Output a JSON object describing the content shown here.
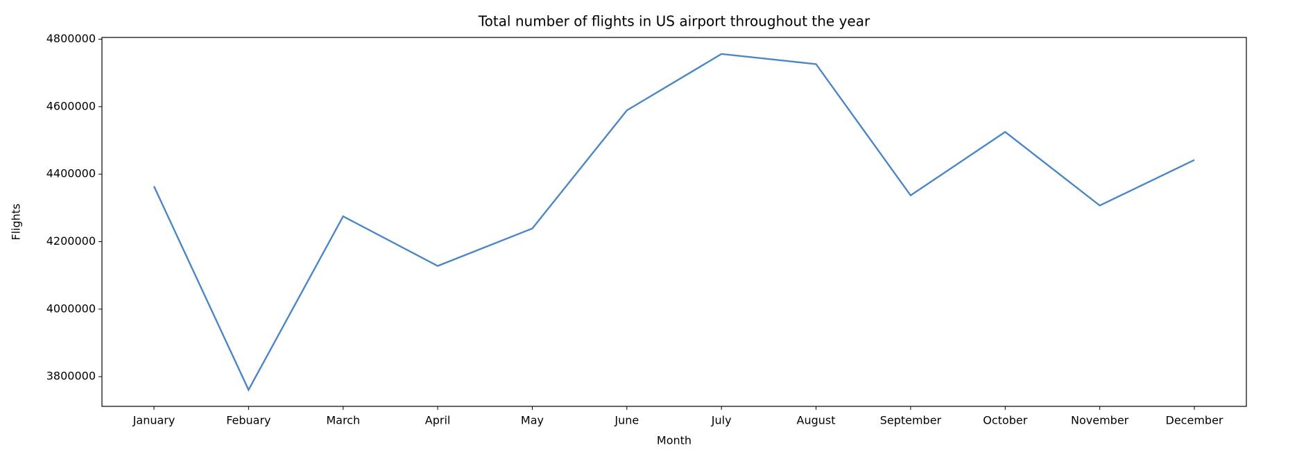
{
  "chart_data": {
    "type": "line",
    "title": "Total number of flights in US airport throughout the year",
    "x_label": "Month",
    "y_label": "Flights",
    "categories": [
      "January",
      "Febuary",
      "March",
      "April",
      "May",
      "June",
      "July",
      "August",
      "September",
      "October",
      "November",
      "December"
    ],
    "series": [
      {
        "name": "Flights",
        "color": "#4a86c5",
        "values": [
          4364000,
          3761000,
          4275000,
          4128000,
          4239000,
          4589000,
          4756000,
          4726000,
          4337000,
          4525000,
          4307000,
          4442000
        ]
      }
    ],
    "ylim": [
      3712000,
      4805000
    ],
    "yticks": [
      3800000,
      4000000,
      4200000,
      4400000,
      4600000,
      4800000
    ],
    "grid": false
  }
}
